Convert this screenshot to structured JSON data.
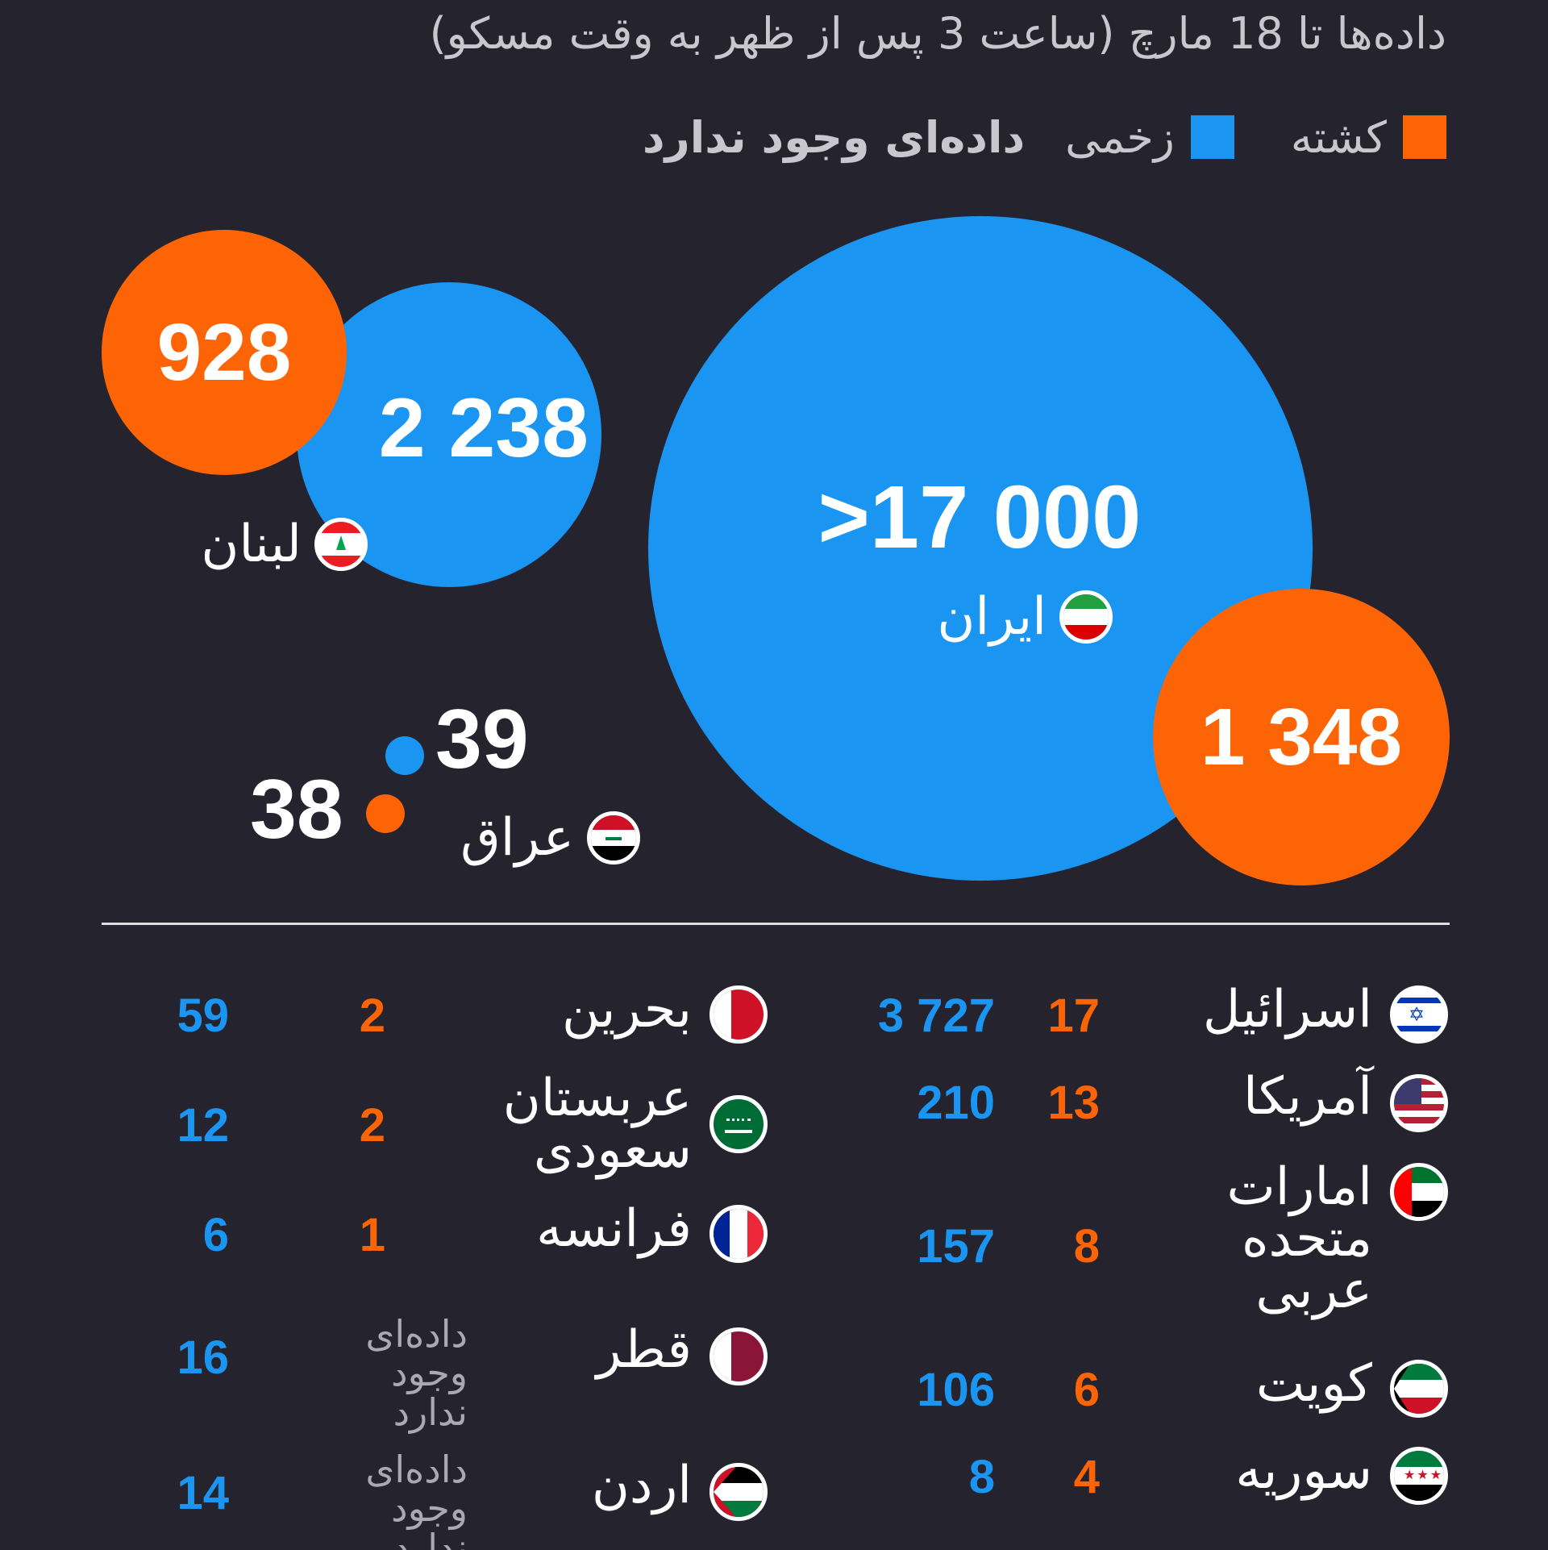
{
  "subtitle": "داده‌ها تا 18 مارچ (ساعت 3 پس از ظهر به وقت مسکو)",
  "legend": {
    "killed_label": "کشته",
    "wounded_label": "زخمی",
    "no_data_label": "داده‌ای وجود ندارد",
    "killed_color": "#fc6405",
    "wounded_color": "#1a96f2"
  },
  "top": {
    "iran": {
      "name": "ایران",
      "wounded": ">17 000",
      "killed": "1 348",
      "flag": "iran-flag"
    },
    "lebanon": {
      "name": "لبنان",
      "wounded": "2 238",
      "killed": "928",
      "flag": "lebanon-flag"
    },
    "iraq": {
      "name": "عراق",
      "wounded": "39",
      "killed": "38",
      "flag": "iraq-flag"
    }
  },
  "table": {
    "right_column": [
      {
        "name": "اسرائیل",
        "killed": "17",
        "wounded": "3 727",
        "flag": "israel-flag"
      },
      {
        "name": "آمریکا",
        "killed": "13",
        "wounded": "210",
        "flag": "usa-flag"
      },
      {
        "name": "امارات متحده عربی",
        "killed": "8",
        "wounded": "157",
        "flag": "uae-flag"
      },
      {
        "name": "کویت",
        "killed": "6",
        "wounded": "106",
        "flag": "kuwait-flag"
      },
      {
        "name": "سوریه",
        "killed": "4",
        "wounded": "8",
        "flag": "syria-flag"
      }
    ],
    "left_column": [
      {
        "name": "بحرین",
        "killed": "2",
        "wounded": "59",
        "flag": "bahrain-flag"
      },
      {
        "name": "عربستان سعودی",
        "killed": "2",
        "wounded": "12",
        "flag": "saudi-flag"
      },
      {
        "name": "فرانسه",
        "killed": "1",
        "wounded": "6",
        "flag": "france-flag"
      },
      {
        "name": "قطر",
        "killed": "داده‌ای وجود ندارد",
        "wounded": "16",
        "flag": "qatar-flag"
      },
      {
        "name": "اردن",
        "killed": "داده‌ای وجود ندارد",
        "wounded": "14",
        "flag": "jordan-flag"
      }
    ]
  }
}
